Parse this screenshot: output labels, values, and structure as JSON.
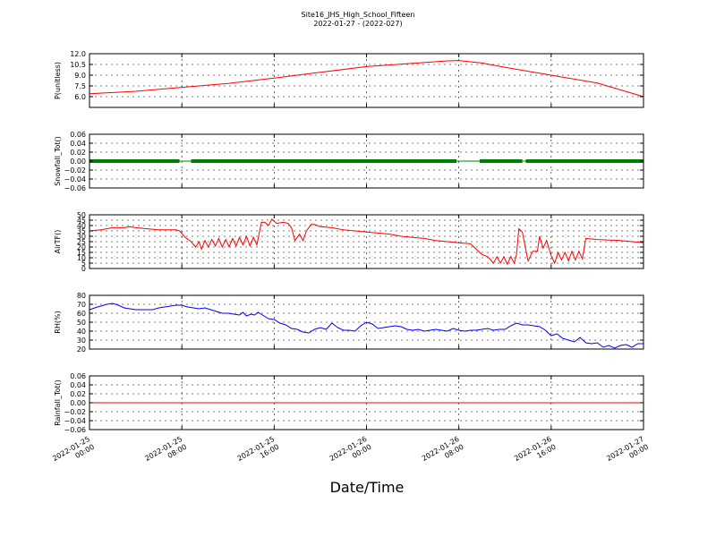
{
  "title": "Site16_JHS_High_School_Fifteen",
  "subtitle": "2022-01-27 - (2022-027)",
  "chart_data": {
    "type": "line",
    "xlabel": "Date/Time",
    "x_ticks": [
      [
        "2022-01-25",
        "00:00"
      ],
      [
        "2022-01-25",
        "08:00"
      ],
      [
        "2022-01-25",
        "16:00"
      ],
      [
        "2022-01-26",
        "00:00"
      ],
      [
        "2022-01-26",
        "08:00"
      ],
      [
        "2022-01-26",
        "16:00"
      ],
      [
        "2022-01-27",
        "00:00"
      ]
    ],
    "xlim_hours": [
      0,
      48
    ],
    "grid": true,
    "panels": [
      {
        "ylabel": "P(unitless)",
        "ylim": [
          4.5,
          12.0
        ],
        "yticks": [
          "6.0",
          "7.5",
          "9.0",
          "10.5",
          "12.0"
        ],
        "ytick_values": [
          6.0,
          7.5,
          9.0,
          10.5,
          12.0
        ],
        "color": "#ff0000",
        "style": "line",
        "points": [
          [
            0,
            6.4
          ],
          [
            4,
            6.75
          ],
          [
            8,
            7.3
          ],
          [
            12,
            7.85
          ],
          [
            16,
            8.6
          ],
          [
            20,
            9.4
          ],
          [
            24,
            10.2
          ],
          [
            28,
            10.65
          ],
          [
            31,
            11.0
          ],
          [
            32,
            11.05
          ],
          [
            34,
            10.7
          ],
          [
            36,
            10.1
          ],
          [
            40,
            9.0
          ],
          [
            44,
            7.9
          ],
          [
            48,
            6.0
          ]
        ]
      },
      {
        "ylabel": "Snowfall_Tot()",
        "ylim": [
          -0.06,
          0.06
        ],
        "yticks": [
          "−0.06",
          "−0.04",
          "−0.02",
          "0.00",
          "0.02",
          "0.04",
          "0.06"
        ],
        "ytick_values": [
          -0.06,
          -0.04,
          -0.02,
          0.0,
          0.02,
          0.04,
          0.06
        ],
        "color": "#008000",
        "style": "markers",
        "value": 0.0,
        "segments": [
          [
            0,
            7.8
          ],
          [
            8.8,
            31.8
          ],
          [
            33.8,
            37.5
          ],
          [
            37.8,
            48
          ]
        ],
        "thin_gaps": [
          [
            7.8,
            8.8
          ],
          [
            31.8,
            33.8
          ],
          [
            37.5,
            37.8
          ]
        ]
      },
      {
        "ylabel": "AirTF()",
        "ylim": [
          0,
          50
        ],
        "yticks": [
          "0",
          "5",
          "10",
          "15",
          "20",
          "25",
          "30",
          "35",
          "40",
          "45",
          "50"
        ],
        "ytick_values": [
          0,
          5,
          10,
          15,
          20,
          25,
          30,
          35,
          40,
          45,
          50
        ],
        "color": "#ff0000",
        "style": "line",
        "points": [
          [
            0,
            35
          ],
          [
            1,
            36
          ],
          [
            2,
            38
          ],
          [
            3,
            38
          ],
          [
            3.5,
            39
          ],
          [
            4,
            38
          ],
          [
            5,
            37
          ],
          [
            6,
            36
          ],
          [
            7,
            36
          ],
          [
            7.5,
            36
          ],
          [
            7.8,
            35
          ],
          [
            8.3,
            29
          ],
          [
            8.8,
            25
          ],
          [
            9.2,
            20
          ],
          [
            9.5,
            25
          ],
          [
            9.7,
            18
          ],
          [
            10,
            26
          ],
          [
            10.3,
            20
          ],
          [
            10.6,
            27
          ],
          [
            10.9,
            21
          ],
          [
            11.2,
            28
          ],
          [
            11.5,
            20
          ],
          [
            11.8,
            27
          ],
          [
            12.1,
            20
          ],
          [
            12.4,
            28
          ],
          [
            12.7,
            21
          ],
          [
            13,
            29
          ],
          [
            13.3,
            22
          ],
          [
            13.6,
            30
          ],
          [
            13.9,
            21
          ],
          [
            14.2,
            29
          ],
          [
            14.5,
            22
          ],
          [
            14.9,
            43
          ],
          [
            15.2,
            43
          ],
          [
            15.5,
            40
          ],
          [
            15.8,
            46
          ],
          [
            16.2,
            42
          ],
          [
            16.8,
            43
          ],
          [
            17.2,
            42
          ],
          [
            17.5,
            38
          ],
          [
            17.8,
            26
          ],
          [
            18.2,
            32
          ],
          [
            18.5,
            26
          ],
          [
            18.8,
            35
          ],
          [
            19.2,
            41
          ],
          [
            19.5,
            41
          ],
          [
            20,
            39
          ],
          [
            21,
            38
          ],
          [
            22,
            36
          ],
          [
            23,
            35
          ],
          [
            24,
            34
          ],
          [
            25,
            33
          ],
          [
            26,
            32
          ],
          [
            27,
            30
          ],
          [
            28,
            29
          ],
          [
            29,
            28
          ],
          [
            30,
            26
          ],
          [
            31,
            25
          ],
          [
            32,
            24
          ],
          [
            33,
            23
          ],
          [
            34,
            13
          ],
          [
            34.5,
            11
          ],
          [
            35,
            5
          ],
          [
            35.3,
            11
          ],
          [
            35.6,
            5
          ],
          [
            35.9,
            11
          ],
          [
            36.2,
            4
          ],
          [
            36.5,
            11
          ],
          [
            36.8,
            5
          ],
          [
            37,
            13
          ],
          [
            37.2,
            37
          ],
          [
            37.5,
            34
          ],
          [
            38,
            7
          ],
          [
            38.4,
            16
          ],
          [
            38.8,
            16
          ],
          [
            39,
            30
          ],
          [
            39.3,
            19
          ],
          [
            39.6,
            26
          ],
          [
            40,
            12
          ],
          [
            40.3,
            5
          ],
          [
            40.6,
            15
          ],
          [
            40.9,
            8
          ],
          [
            41.2,
            15
          ],
          [
            41.5,
            7
          ],
          [
            41.8,
            16
          ],
          [
            42.1,
            8
          ],
          [
            42.4,
            16
          ],
          [
            42.7,
            9
          ],
          [
            43,
            28
          ],
          [
            44,
            27
          ],
          [
            46,
            26
          ],
          [
            48,
            24
          ]
        ]
      },
      {
        "ylabel": "RH(%)",
        "ylim": [
          20,
          80
        ],
        "yticks": [
          "20",
          "30",
          "40",
          "50",
          "60",
          "70",
          "80"
        ],
        "ytick_values": [
          20,
          30,
          40,
          50,
          60,
          70,
          80
        ],
        "color": "#0000ff",
        "style": "line",
        "points": [
          [
            0,
            64
          ],
          [
            0.7,
            67
          ],
          [
            1.5,
            70
          ],
          [
            2,
            71
          ],
          [
            2.5,
            69
          ],
          [
            3,
            66
          ],
          [
            3.5,
            65
          ],
          [
            4,
            64
          ],
          [
            4.5,
            64
          ],
          [
            5,
            64
          ],
          [
            5.5,
            64
          ],
          [
            6,
            66
          ],
          [
            6.5,
            67
          ],
          [
            7,
            68
          ],
          [
            7.5,
            69
          ],
          [
            8,
            69
          ],
          [
            8.5,
            67
          ],
          [
            9,
            66
          ],
          [
            9.5,
            65
          ],
          [
            10,
            66
          ],
          [
            10.5,
            64
          ],
          [
            11,
            62
          ],
          [
            11.5,
            60
          ],
          [
            12,
            60
          ],
          [
            12.5,
            59
          ],
          [
            13,
            58
          ],
          [
            13.3,
            61
          ],
          [
            13.6,
            57
          ],
          [
            14,
            59
          ],
          [
            14.3,
            58
          ],
          [
            14.6,
            61
          ],
          [
            15,
            58
          ],
          [
            15.5,
            54
          ],
          [
            16,
            53
          ],
          [
            16.5,
            49
          ],
          [
            17,
            47
          ],
          [
            17.5,
            43
          ],
          [
            18,
            42
          ],
          [
            18.5,
            39
          ],
          [
            19,
            38
          ],
          [
            19.5,
            42
          ],
          [
            20,
            44
          ],
          [
            20.5,
            42
          ],
          [
            21,
            49
          ],
          [
            21.5,
            44
          ],
          [
            22,
            41
          ],
          [
            22.5,
            41
          ],
          [
            23,
            40
          ],
          [
            23.5,
            46
          ],
          [
            24,
            50
          ],
          [
            24.5,
            48
          ],
          [
            25,
            43
          ],
          [
            25.5,
            44
          ],
          [
            26,
            45
          ],
          [
            26.5,
            46
          ],
          [
            27,
            45
          ],
          [
            27.5,
            42
          ],
          [
            28,
            41
          ],
          [
            28.5,
            42
          ],
          [
            29,
            40
          ],
          [
            29.5,
            41
          ],
          [
            30,
            42
          ],
          [
            30.5,
            41
          ],
          [
            31,
            40
          ],
          [
            31.5,
            43
          ],
          [
            32,
            41
          ],
          [
            32.5,
            40
          ],
          [
            33,
            41
          ],
          [
            33.5,
            41
          ],
          [
            34,
            42
          ],
          [
            34.5,
            43
          ],
          [
            35,
            41
          ],
          [
            35.5,
            42
          ],
          [
            36,
            42
          ],
          [
            36.5,
            46
          ],
          [
            37,
            49
          ],
          [
            37.5,
            47
          ],
          [
            38,
            47
          ],
          [
            38.5,
            46
          ],
          [
            39,
            45
          ],
          [
            39.5,
            41
          ],
          [
            40,
            35
          ],
          [
            40.5,
            37
          ],
          [
            41,
            32
          ],
          [
            41.5,
            30
          ],
          [
            42,
            28
          ],
          [
            42.5,
            33
          ],
          [
            43,
            27
          ],
          [
            43.5,
            26
          ],
          [
            44,
            27
          ],
          [
            44.5,
            22
          ],
          [
            45,
            24
          ],
          [
            45.5,
            21
          ],
          [
            46,
            24
          ],
          [
            46.5,
            25
          ],
          [
            47,
            22
          ],
          [
            47.5,
            26
          ],
          [
            48,
            26
          ]
        ]
      },
      {
        "ylabel": "Rainfall_Tot()",
        "ylim": [
          -0.06,
          0.06
        ],
        "yticks": [
          "−0.06",
          "−0.04",
          "−0.02",
          "0.00",
          "0.02",
          "0.04",
          "0.06"
        ],
        "ytick_values": [
          -0.06,
          -0.04,
          -0.02,
          0.0,
          0.02,
          0.04,
          0.06
        ],
        "color": "#ff0000",
        "style": "line",
        "points": [
          [
            0,
            0.0
          ],
          [
            48,
            0.0
          ]
        ]
      }
    ]
  }
}
